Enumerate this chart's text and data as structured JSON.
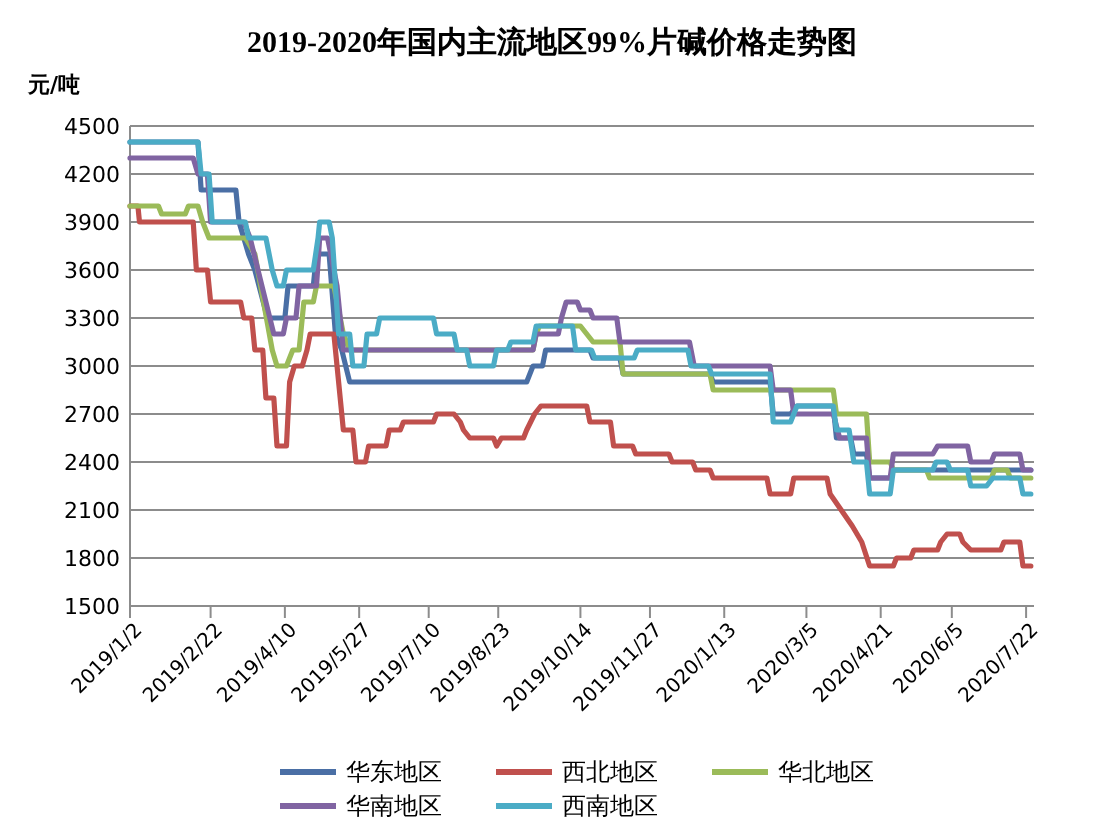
{
  "chart_data": {
    "type": "line",
    "title": "2019-2020年国内主流地区99%片碱价格走势图",
    "ylabel": "元/吨",
    "xlim": [
      "2019-01-02",
      "2020-07-27"
    ],
    "xticks": [
      {
        "value": "2019-01-02",
        "label": "2019/1/2"
      },
      {
        "value": "2019-02-22",
        "label": "2019/2/22"
      },
      {
        "value": "2019-04-10",
        "label": "2019/4/10"
      },
      {
        "value": "2019-05-27",
        "label": "2019/5/27"
      },
      {
        "value": "2019-07-10",
        "label": "2019/7/10"
      },
      {
        "value": "2019-08-23",
        "label": "2019/8/23"
      },
      {
        "value": "2019-10-14",
        "label": "2019/10/14"
      },
      {
        "value": "2019-11-27",
        "label": "2019/11/27"
      },
      {
        "value": "2020-01-13",
        "label": "2020/1/13"
      },
      {
        "value": "2020-03-05",
        "label": "2020/3/5"
      },
      {
        "value": "2020-04-21",
        "label": "2020/4/21"
      },
      {
        "value": "2020-06-05",
        "label": "2020/6/5"
      },
      {
        "value": "2020-07-22",
        "label": "2020/7/22"
      }
    ],
    "ylim": [
      1500,
      4500
    ],
    "yticks": [
      1500,
      1800,
      2100,
      2400,
      2700,
      3000,
      3300,
      3600,
      3900,
      4200,
      4500
    ],
    "grid": "y",
    "legend": "bottom",
    "marker": "none",
    "line_style": "solid",
    "series": [
      {
        "name": "华东地区",
        "color": "#4a6fa5",
        "x": [
          "2019-01-02",
          "2019-02-14",
          "2019-02-16",
          "2019-03-10",
          "2019-03-12",
          "2019-03-18",
          "2019-03-22",
          "2019-03-30",
          "2019-04-10",
          "2019-04-12",
          "2019-04-28",
          "2019-04-30",
          "2019-05-08",
          "2019-05-12",
          "2019-05-16",
          "2019-05-21",
          "2019-09-10",
          "2019-09-14",
          "2019-09-20",
          "2019-09-22",
          "2019-10-20",
          "2019-10-22",
          "2019-11-08",
          "2019-11-10",
          "2020-01-04",
          "2020-01-06",
          "2020-02-11",
          "2020-02-13",
          "2020-02-24",
          "2020-02-28",
          "2020-03-22",
          "2020-03-24",
          "2020-04-02",
          "2020-04-04",
          "2020-04-12",
          "2020-04-14",
          "2020-04-27",
          "2020-04-29",
          "2020-07-25"
        ],
        "values": [
          4400,
          4400,
          4100,
          4100,
          3900,
          3700,
          3600,
          3300,
          3300,
          3500,
          3500,
          3700,
          3700,
          3200,
          3100,
          2900,
          2900,
          3000,
          3000,
          3100,
          3100,
          3050,
          3050,
          2950,
          2950,
          2900,
          2900,
          2700,
          2700,
          2750,
          2750,
          2550,
          2550,
          2450,
          2450,
          2300,
          2300,
          2350,
          2350
        ]
      },
      {
        "name": "西北地区",
        "color": "#c0504d",
        "x": [
          "2019-01-02",
          "2019-01-07",
          "2019-01-08",
          "2019-02-11",
          "2019-02-13",
          "2019-02-20",
          "2019-02-22",
          "2019-03-13",
          "2019-03-15",
          "2019-03-20",
          "2019-03-22",
          "2019-03-27",
          "2019-03-29",
          "2019-04-03",
          "2019-04-05",
          "2019-04-11",
          "2019-04-13",
          "2019-04-16",
          "2019-04-21",
          "2019-04-24",
          "2019-04-26",
          "2019-05-11",
          "2019-05-13",
          "2019-05-17",
          "2019-05-23",
          "2019-05-25",
          "2019-05-31",
          "2019-06-02",
          "2019-06-13",
          "2019-06-15",
          "2019-06-22",
          "2019-06-24",
          "2019-07-13",
          "2019-07-15",
          "2019-07-26",
          "2019-07-30",
          "2019-08-01",
          "2019-08-05",
          "2019-08-20",
          "2019-08-22",
          "2019-08-25",
          "2019-09-08",
          "2019-09-10",
          "2019-09-15",
          "2019-09-19",
          "2019-10-18",
          "2019-10-20",
          "2019-11-02",
          "2019-11-04",
          "2019-11-16",
          "2019-11-18",
          "2019-12-09",
          "2019-12-11",
          "2019-12-24",
          "2019-12-26",
          "2020-01-04",
          "2020-01-06",
          "2020-02-09",
          "2020-02-11",
          "2020-02-24",
          "2020-02-26",
          "2020-03-18",
          "2020-03-20",
          "2020-03-27",
          "2020-04-03",
          "2020-04-09",
          "2020-04-14",
          "2020-04-29",
          "2020-05-01",
          "2020-05-10",
          "2020-05-12",
          "2020-05-27",
          "2020-05-29",
          "2020-06-02",
          "2020-06-10",
          "2020-06-12",
          "2020-06-17",
          "2020-07-06",
          "2020-07-08",
          "2020-07-18",
          "2020-07-20",
          "2020-07-25"
        ],
        "values": [
          4000,
          4000,
          3900,
          3900,
          3600,
          3600,
          3400,
          3400,
          3300,
          3300,
          3100,
          3100,
          2800,
          2800,
          2500,
          2500,
          2900,
          3000,
          3000,
          3100,
          3200,
          3200,
          3000,
          2600,
          2600,
          2400,
          2400,
          2500,
          2500,
          2600,
          2600,
          2650,
          2650,
          2700,
          2700,
          2650,
          2600,
          2550,
          2550,
          2500,
          2550,
          2550,
          2600,
          2700,
          2750,
          2750,
          2650,
          2650,
          2500,
          2500,
          2450,
          2450,
          2400,
          2400,
          2350,
          2350,
          2300,
          2300,
          2200,
          2200,
          2300,
          2300,
          2200,
          2100,
          2000,
          1900,
          1750,
          1750,
          1800,
          1800,
          1850,
          1850,
          1900,
          1950,
          1950,
          1900,
          1850,
          1850,
          1900,
          1900,
          1750,
          1750
        ]
      },
      {
        "name": "华北地区",
        "color": "#9bbb59",
        "x": [
          "2019-01-02",
          "2019-01-20",
          "2019-01-22",
          "2019-02-06",
          "2019-02-08",
          "2019-02-14",
          "2019-02-17",
          "2019-02-21",
          "2019-03-16",
          "2019-03-22",
          "2019-04-02",
          "2019-04-05",
          "2019-04-11",
          "2019-04-15",
          "2019-04-19",
          "2019-04-22",
          "2019-04-28",
          "2019-04-30",
          "2019-05-11",
          "2019-05-13",
          "2019-05-17",
          "2019-05-21",
          "2019-09-14",
          "2019-09-16",
          "2019-09-18",
          "2019-10-14",
          "2019-10-22",
          "2019-11-08",
          "2019-11-10",
          "2020-01-04",
          "2020-01-06",
          "2020-03-22",
          "2020-03-24",
          "2020-04-12",
          "2020-04-14",
          "2020-04-27",
          "2020-04-29",
          "2020-05-20",
          "2020-05-22",
          "2020-06-30",
          "2020-07-02",
          "2020-07-10",
          "2020-07-12",
          "2020-07-25"
        ],
        "values": [
          4000,
          4000,
          3950,
          3950,
          4000,
          4000,
          3900,
          3800,
          3800,
          3700,
          3100,
          3000,
          3000,
          3100,
          3100,
          3400,
          3400,
          3500,
          3500,
          3400,
          3200,
          3100,
          3100,
          3200,
          3250,
          3250,
          3150,
          3150,
          2950,
          2950,
          2850,
          2850,
          2700,
          2700,
          2400,
          2400,
          2350,
          2350,
          2300,
          2300,
          2350,
          2350,
          2300,
          2300
        ]
      },
      {
        "name": "华南地区",
        "color": "#8064a2",
        "x": [
          "2019-01-02",
          "2019-02-11",
          "2019-02-14",
          "2019-02-20",
          "2019-02-22",
          "2019-03-15",
          "2019-03-19",
          "2019-03-24",
          "2019-04-03",
          "2019-04-09",
          "2019-04-11",
          "2019-04-17",
          "2019-04-19",
          "2019-04-30",
          "2019-05-02",
          "2019-05-07",
          "2019-05-09",
          "2019-05-13",
          "2019-05-17",
          "2019-09-14",
          "2019-09-16",
          "2019-09-30",
          "2019-10-02",
          "2019-10-05",
          "2019-10-12",
          "2019-10-14",
          "2019-10-20",
          "2019-10-22",
          "2019-11-06",
          "2019-11-08",
          "2019-12-22",
          "2019-12-25",
          "2020-02-11",
          "2020-02-13",
          "2020-02-24",
          "2020-02-26",
          "2020-03-22",
          "2020-03-26",
          "2020-04-12",
          "2020-04-14",
          "2020-04-27",
          "2020-04-29",
          "2020-05-24",
          "2020-05-27",
          "2020-06-15",
          "2020-06-17",
          "2020-06-30",
          "2020-07-02",
          "2020-07-18",
          "2020-07-20",
          "2020-07-25"
        ],
        "values": [
          4300,
          4300,
          4200,
          4200,
          3900,
          3900,
          3800,
          3600,
          3200,
          3200,
          3300,
          3300,
          3500,
          3500,
          3800,
          3800,
          3700,
          3500,
          3100,
          3100,
          3200,
          3200,
          3300,
          3400,
          3400,
          3350,
          3350,
          3300,
          3300,
          3150,
          3150,
          3000,
          3000,
          2850,
          2850,
          2700,
          2700,
          2550,
          2550,
          2300,
          2300,
          2450,
          2450,
          2500,
          2500,
          2400,
          2400,
          2450,
          2450,
          2350,
          2350
        ]
      },
      {
        "name": "西南地区",
        "color": "#4bacc6",
        "x": [
          "2019-01-02",
          "2019-02-14",
          "2019-02-16",
          "2019-02-21",
          "2019-02-23",
          "2019-03-16",
          "2019-03-18",
          "2019-03-29",
          "2019-04-02",
          "2019-04-05",
          "2019-04-09",
          "2019-04-11",
          "2019-04-28",
          "2019-05-01",
          "2019-05-02",
          "2019-05-08",
          "2019-05-10",
          "2019-05-14",
          "2019-05-21",
          "2019-05-23",
          "2019-05-30",
          "2019-06-01",
          "2019-06-07",
          "2019-06-09",
          "2019-07-13",
          "2019-07-15",
          "2019-07-26",
          "2019-07-28",
          "2019-08-03",
          "2019-08-05",
          "2019-08-20",
          "2019-08-22",
          "2019-08-29",
          "2019-08-31",
          "2019-09-14",
          "2019-09-16",
          "2019-10-09",
          "2019-10-11",
          "2019-10-21",
          "2019-10-23",
          "2019-11-17",
          "2019-11-19",
          "2019-12-21",
          "2019-12-23",
          "2020-01-03",
          "2020-01-05",
          "2020-02-11",
          "2020-02-13",
          "2020-02-24",
          "2020-02-28",
          "2020-03-22",
          "2020-03-24",
          "2020-04-01",
          "2020-04-04",
          "2020-04-12",
          "2020-04-14",
          "2020-04-27",
          "2020-04-29",
          "2020-05-24",
          "2020-05-26",
          "2020-06-02",
          "2020-06-04",
          "2020-06-15",
          "2020-06-17",
          "2020-06-27",
          "2020-07-01",
          "2020-07-18",
          "2020-07-20",
          "2020-07-25"
        ],
        "values": [
          4400,
          4400,
          4200,
          4200,
          3900,
          3900,
          3800,
          3800,
          3600,
          3500,
          3500,
          3600,
          3600,
          3800,
          3900,
          3900,
          3800,
          3200,
          3200,
          3000,
          3000,
          3200,
          3200,
          3300,
          3300,
          3200,
          3200,
          3100,
          3100,
          3000,
          3000,
          3100,
          3100,
          3150,
          3150,
          3250,
          3250,
          3100,
          3100,
          3050,
          3050,
          3100,
          3100,
          3000,
          3000,
          2950,
          2950,
          2650,
          2650,
          2750,
          2750,
          2600,
          2600,
          2400,
          2400,
          2200,
          2200,
          2350,
          2350,
          2400,
          2400,
          2350,
          2350,
          2250,
          2250,
          2300,
          2300,
          2200,
          2200
        ]
      }
    ]
  }
}
